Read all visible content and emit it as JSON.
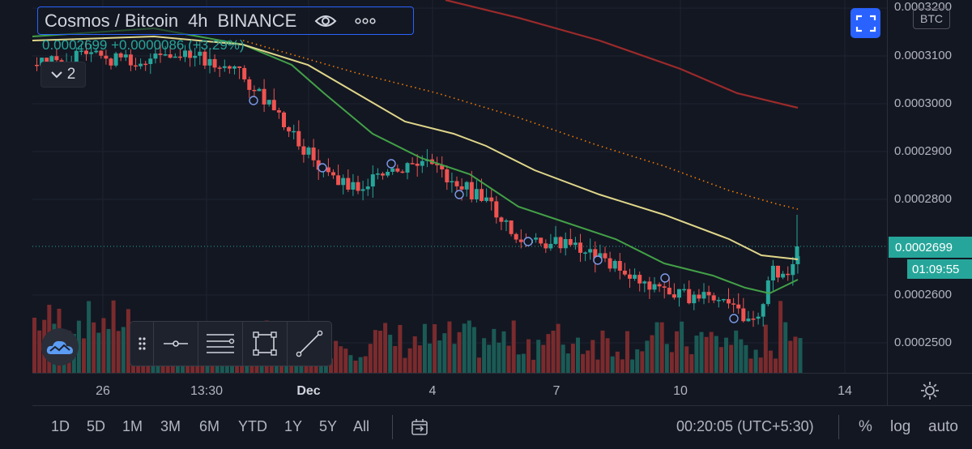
{
  "header": {
    "symbol": "Cosmos / Bitcoin",
    "interval": "4h",
    "exchange": "BINANCE",
    "eye_icon": "eye-icon",
    "more_icon": "more-icon",
    "price_change": "0.0002699 +0.0000086 (+3.29%)",
    "indicators_toggle": "2"
  },
  "price_axis": {
    "labels": [
      "0.0003200",
      "0.0003100",
      "0.0003000",
      "0.0002900",
      "0.0002800",
      "0.0002600",
      "0.0002500"
    ],
    "current_price": "0.0002699",
    "countdown": "01:09:55",
    "currency_badge": "BTC"
  },
  "time_axis": {
    "labels": [
      "26",
      "13:30",
      "Dec",
      "4",
      "7",
      "10",
      "14"
    ]
  },
  "bottom_bar": {
    "ranges": [
      "1D",
      "5D",
      "1M",
      "3M",
      "6M",
      "YTD",
      "1Y",
      "5Y",
      "All"
    ],
    "clock": "00:20:05 (UTC+5:30)",
    "percent": "%",
    "log": "log",
    "auto": "auto"
  },
  "colors": {
    "up": "#26a69a",
    "down": "#ef5350",
    "ma_fast": "#43a047",
    "ma_mid": "#e0d68a",
    "ma_slow": "#9b2a2a",
    "ma_dotted": "#f57c00",
    "accent": "#2962ff"
  },
  "chart_data": {
    "type": "candlestick",
    "ylim": [
      0.000244,
      0.000321
    ],
    "series": [
      {
        "name": "",
        "values": [
          0.000315,
          0.000312,
          0.000308,
          0.000306,
          0.000304,
          0.000302,
          0.000299,
          0.000295,
          0.000292,
          0.000289,
          0.000286,
          0.000284,
          0.000281,
          0.000279,
          0.000276,
          0.000273,
          0.00027,
          0.000267,
          0.000265,
          0.000262,
          0.00026,
          0.000263
        ]
      },
      {
        "name": "",
        "values": [
          0.000315,
          0.000314,
          0.000311,
          0.000308,
          0.000305,
          0.000302,
          0.000299,
          0.000296,
          0.000294,
          0.000291,
          0.000288,
          0.000286,
          0.000283,
          0.00028,
          0.000278,
          0.000275,
          0.000273,
          0.000271,
          0.000269,
          0.000268,
          0.000267,
          0.000268
        ]
      }
    ]
  }
}
